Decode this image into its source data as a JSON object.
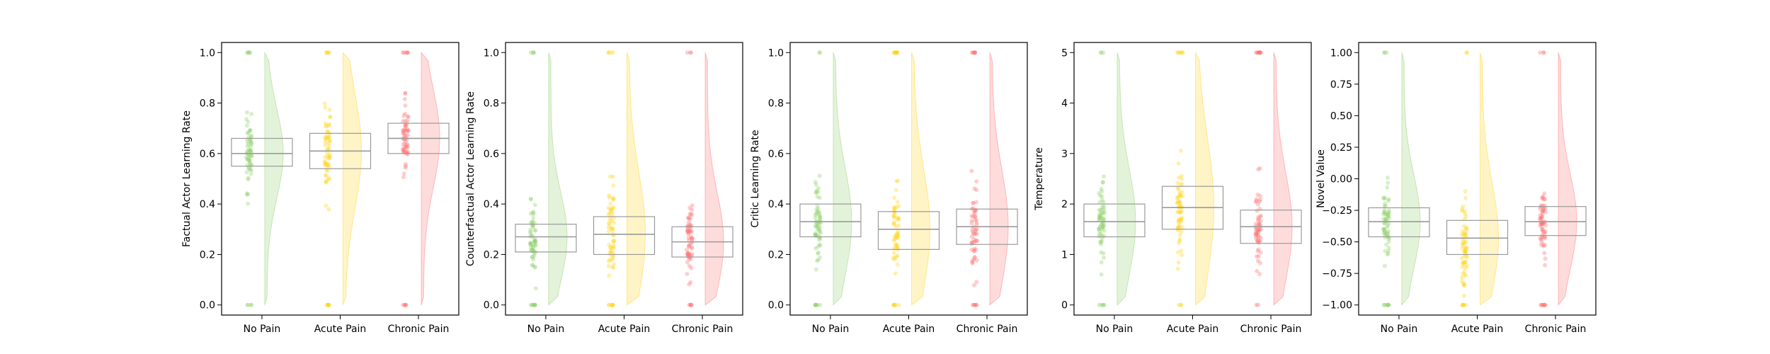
{
  "colors": {
    "No Pain": "#8fd16a",
    "Acute Pain": "#ffd31a",
    "Chronic Pain": "#ff7373"
  },
  "chart_data": [
    {
      "type": "raincloud-boxplot",
      "ylabel": "Factual Actor Learning Rate",
      "ylim": [
        -0.04,
        1.04
      ],
      "yticks": [
        0.0,
        0.2,
        0.4,
        0.6,
        0.8,
        1.0
      ],
      "ytick_labels": [
        "0.0",
        "0.2",
        "0.4",
        "0.6",
        "0.8",
        "1.0"
      ],
      "categories": [
        "No Pain",
        "Acute Pain",
        "Chronic Pain"
      ],
      "boxes": [
        {
          "q1": 0.55,
          "median": 0.6,
          "q3": 0.66
        },
        {
          "q1": 0.54,
          "median": 0.61,
          "q3": 0.68
        },
        {
          "q1": 0.6,
          "median": 0.66,
          "q3": 0.72
        }
      ]
    },
    {
      "type": "raincloud-boxplot",
      "ylabel": "Counterfactual Actor Learning Rate",
      "ylim": [
        -0.04,
        1.04
      ],
      "yticks": [
        0.0,
        0.2,
        0.4,
        0.6,
        0.8,
        1.0
      ],
      "ytick_labels": [
        "0.0",
        "0.2",
        "0.4",
        "0.6",
        "0.8",
        "1.0"
      ],
      "categories": [
        "No Pain",
        "Acute Pain",
        "Chronic Pain"
      ],
      "boxes": [
        {
          "q1": 0.21,
          "median": 0.27,
          "q3": 0.32
        },
        {
          "q1": 0.2,
          "median": 0.28,
          "q3": 0.35
        },
        {
          "q1": 0.19,
          "median": 0.25,
          "q3": 0.31
        }
      ]
    },
    {
      "type": "raincloud-boxplot",
      "ylabel": "Critic Learning Rate",
      "ylim": [
        -0.04,
        1.04
      ],
      "yticks": [
        0.0,
        0.2,
        0.4,
        0.6,
        0.8,
        1.0
      ],
      "ytick_labels": [
        "0.0",
        "0.2",
        "0.4",
        "0.6",
        "0.8",
        "1.0"
      ],
      "categories": [
        "No Pain",
        "Acute Pain",
        "Chronic Pain"
      ],
      "boxes": [
        {
          "q1": 0.27,
          "median": 0.33,
          "q3": 0.4
        },
        {
          "q1": 0.22,
          "median": 0.3,
          "q3": 0.37
        },
        {
          "q1": 0.24,
          "median": 0.31,
          "q3": 0.38
        }
      ]
    },
    {
      "type": "raincloud-boxplot",
      "ylabel": "Temperature",
      "ylim": [
        -0.2,
        5.2
      ],
      "yticks": [
        0,
        1,
        2,
        3,
        4,
        5
      ],
      "ytick_labels": [
        "0",
        "1",
        "2",
        "3",
        "4",
        "5"
      ],
      "categories": [
        "No Pain",
        "Acute Pain",
        "Chronic Pain"
      ],
      "boxes": [
        {
          "q1": 1.35,
          "median": 1.65,
          "q3": 2.0
        },
        {
          "q1": 1.5,
          "median": 1.93,
          "q3": 2.35
        },
        {
          "q1": 1.22,
          "median": 1.55,
          "q3": 1.88
        }
      ]
    },
    {
      "type": "raincloud-boxplot",
      "ylabel": "Novel Value",
      "ylim": [
        -1.08,
        1.08
      ],
      "yticks": [
        -1.0,
        -0.75,
        -0.5,
        -0.25,
        0.0,
        0.25,
        0.5,
        0.75,
        1.0
      ],
      "ytick_labels": [
        "−1.00",
        "−0.75",
        "−0.50",
        "−0.25",
        "0.00",
        "0.25",
        "0.50",
        "0.75",
        "1.00"
      ],
      "categories": [
        "No Pain",
        "Acute Pain",
        "Chronic Pain"
      ],
      "boxes": [
        {
          "q1": -0.46,
          "median": -0.34,
          "q3": -0.23
        },
        {
          "q1": -0.6,
          "median": -0.47,
          "q3": -0.33
        },
        {
          "q1": -0.45,
          "median": -0.34,
          "q3": -0.22
        }
      ]
    }
  ]
}
